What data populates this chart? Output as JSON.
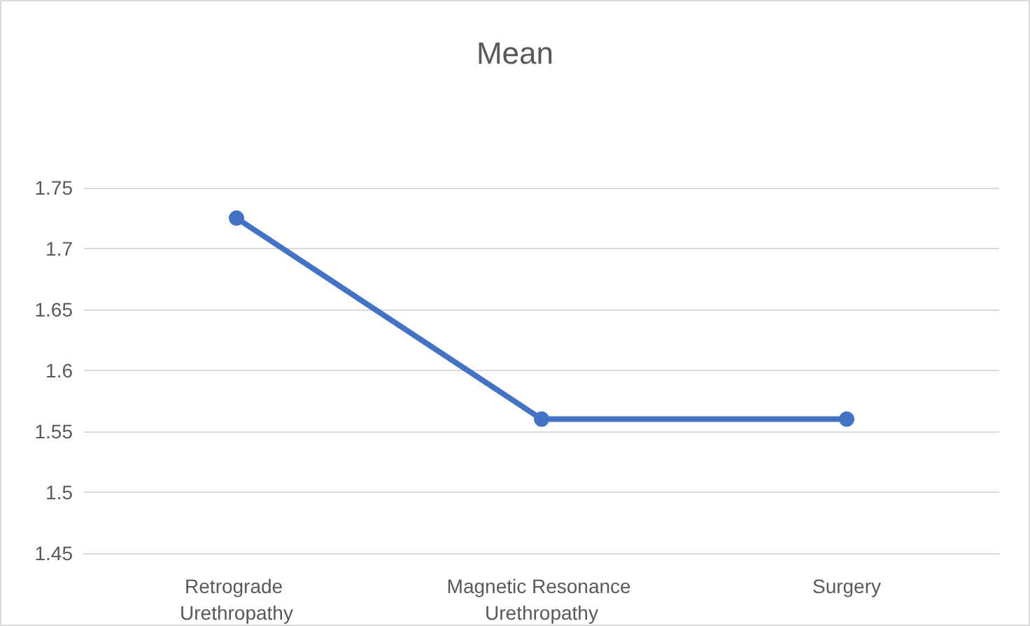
{
  "chart_data": {
    "type": "line",
    "title": "Mean",
    "categories": [
      "Retrograde Urethropathy",
      "Magnetic Resonance Urethropathy",
      "Surgery"
    ],
    "series": [
      {
        "color": "#4472c4",
        "values": [
          1.725,
          1.56,
          1.56
        ]
      }
    ],
    "ylim": [
      1.45,
      1.75
    ],
    "yticks": [
      1.45,
      1.5,
      1.55,
      1.6,
      1.65,
      1.7,
      1.75
    ],
    "grid": "y",
    "marker": "circle",
    "line_style": "solid"
  }
}
